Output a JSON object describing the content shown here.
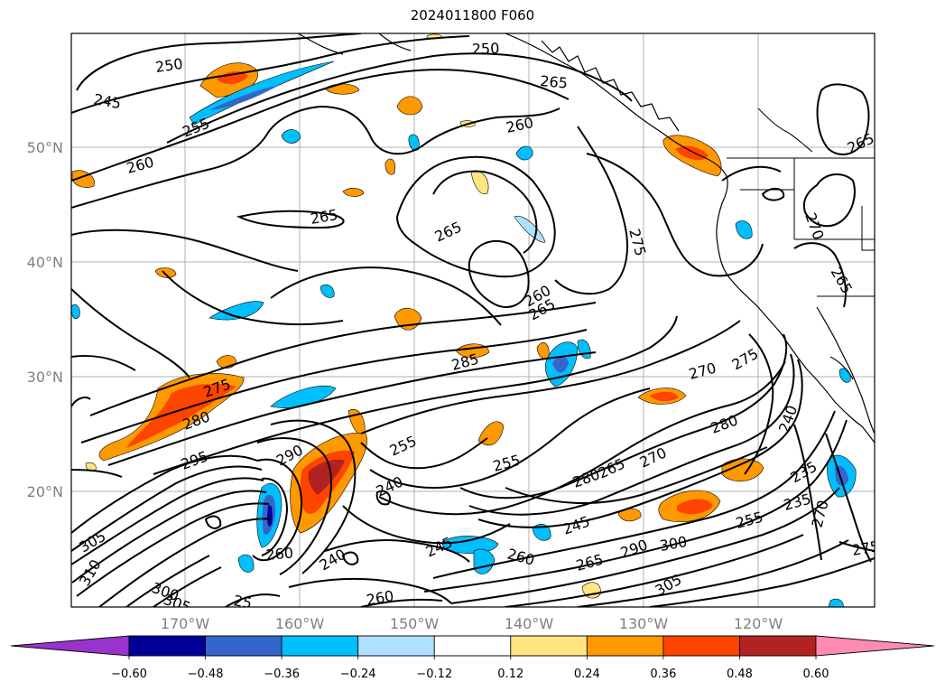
{
  "title": "2024011800 F060",
  "lat_labels": [
    "50°N",
    "40°N",
    "30°N",
    "20°N"
  ],
  "lon_labels": [
    "170°W",
    "160°W",
    "150°W",
    "140°W",
    "130°W",
    "120°W"
  ],
  "colorbar": {
    "tick_labels": [
      "−0.60",
      "−0.48",
      "−0.36",
      "−0.24",
      "−0.12",
      "0.12",
      "0.24",
      "0.36",
      "0.48",
      "0.60"
    ],
    "colors": [
      "#9933cc",
      "#000099",
      "#3366cc",
      "#00bfff",
      "#aee0ff",
      "#ffffff",
      "#ffe680",
      "#ff9900",
      "#ff4400",
      "#b22222",
      "#ff8cb0"
    ]
  },
  "contour_labels": [
    "250",
    "245",
    "255",
    "260",
    "265",
    "250",
    "265",
    "260",
    "265",
    "265",
    "275",
    "270",
    "265",
    "260",
    "265",
    "260",
    "285",
    "270",
    "275",
    "275",
    "280",
    "295",
    "290",
    "255",
    "240",
    "255",
    "280",
    "265",
    "270",
    "280",
    "240",
    "235",
    "260",
    "240",
    "245",
    "255",
    "305",
    "310",
    "300",
    "305",
    "25",
    "260",
    "245",
    "260",
    "265",
    "290",
    "300",
    "305",
    "255",
    "235",
    "270",
    "275"
  ]
}
